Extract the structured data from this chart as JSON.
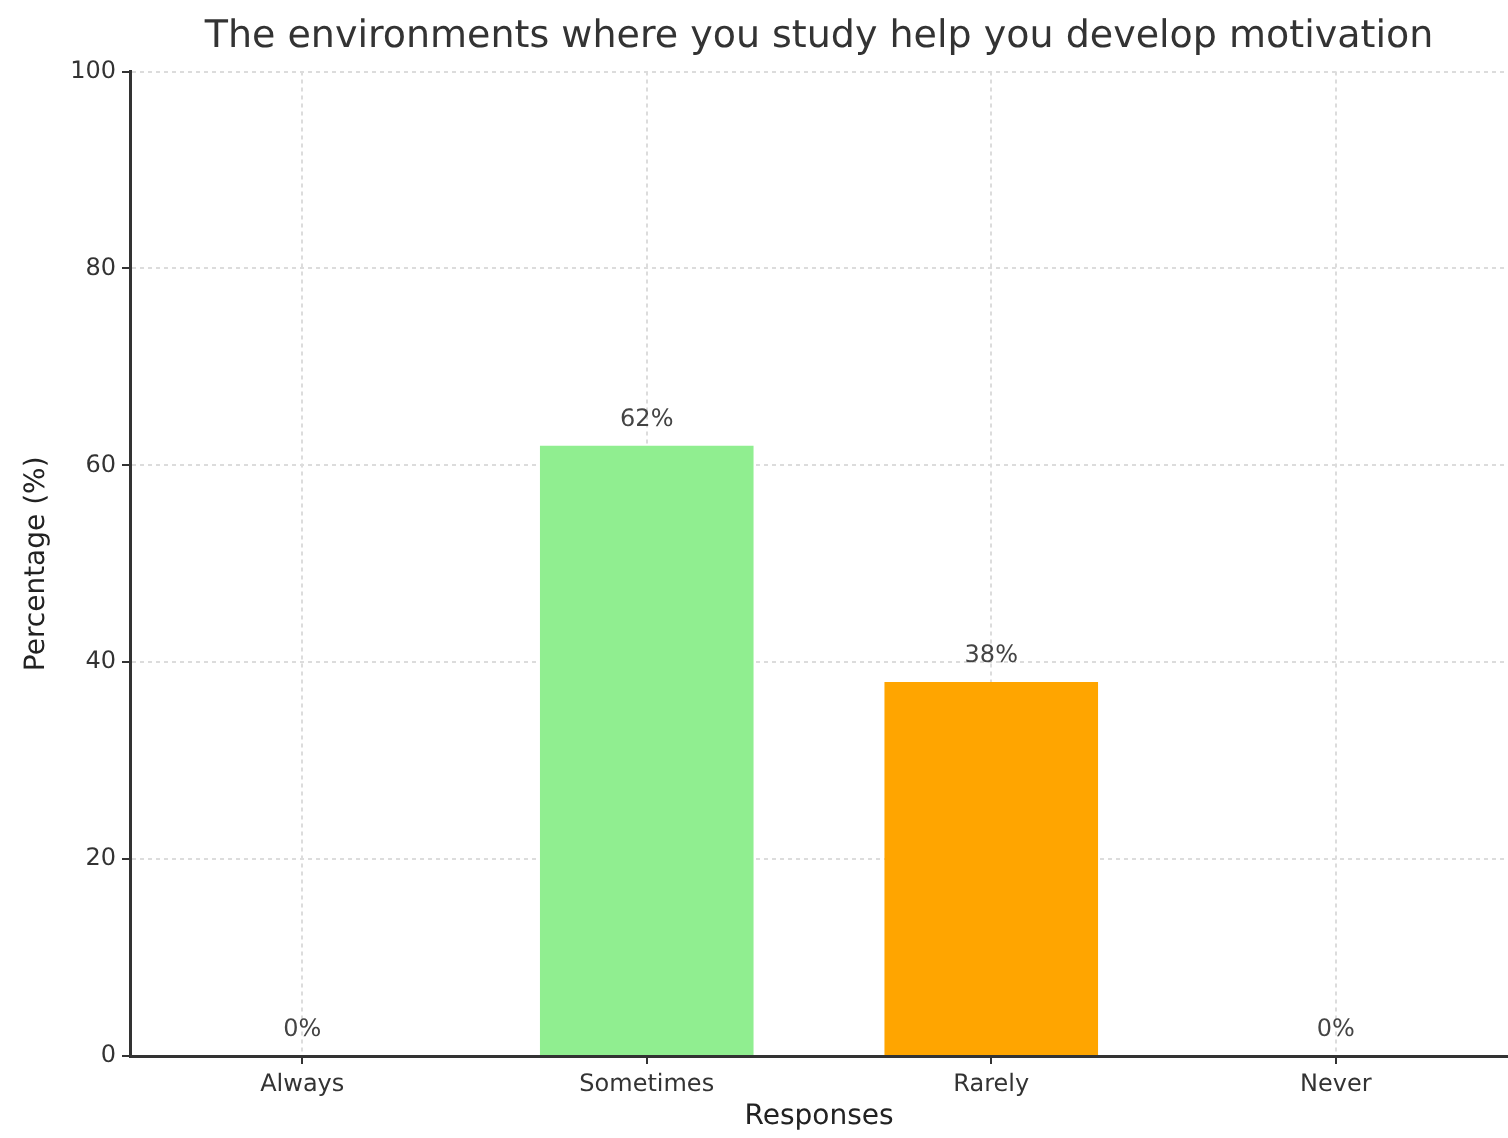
{
  "chart_data": {
    "type": "bar",
    "title": "The environments where you study help you develop motivation",
    "xlabel": "Responses",
    "ylabel": "Percentage (%)",
    "categories": [
      "Always",
      "Sometimes",
      "Rarely",
      "Never"
    ],
    "values": [
      0,
      62,
      38,
      0
    ],
    "colors": [
      null,
      "#90ee90",
      "#ffa500",
      null
    ],
    "value_labels": [
      "0%",
      "62%",
      "38%",
      "0%"
    ],
    "ylim": [
      0,
      100
    ],
    "yticks": [
      0,
      20,
      40,
      60,
      80,
      100
    ],
    "grid": true
  }
}
